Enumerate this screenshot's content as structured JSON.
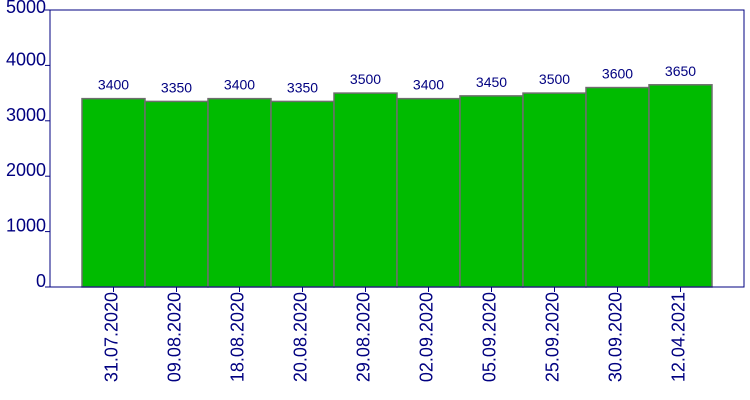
{
  "chart_data": {
    "type": "bar",
    "categories": [
      "31.07.2020",
      "09.08.2020",
      "18.08.2020",
      "20.08.2020",
      "29.08.2020",
      "02.09.2020",
      "05.09.2020",
      "25.09.2020",
      "30.09.2020",
      "12.04.2021"
    ],
    "values": [
      3400,
      3350,
      3400,
      3350,
      3500,
      3400,
      3450,
      3500,
      3600,
      3650
    ],
    "y_ticks": [
      0,
      1000,
      2000,
      3000,
      4000,
      5000
    ],
    "ylim": [
      0,
      5000
    ],
    "grid": false,
    "legend": "none",
    "colors": {
      "bar": "#00bb00",
      "bar_edge": "#6e6e6e",
      "text": "#000080",
      "axis": "#000080"
    }
  }
}
